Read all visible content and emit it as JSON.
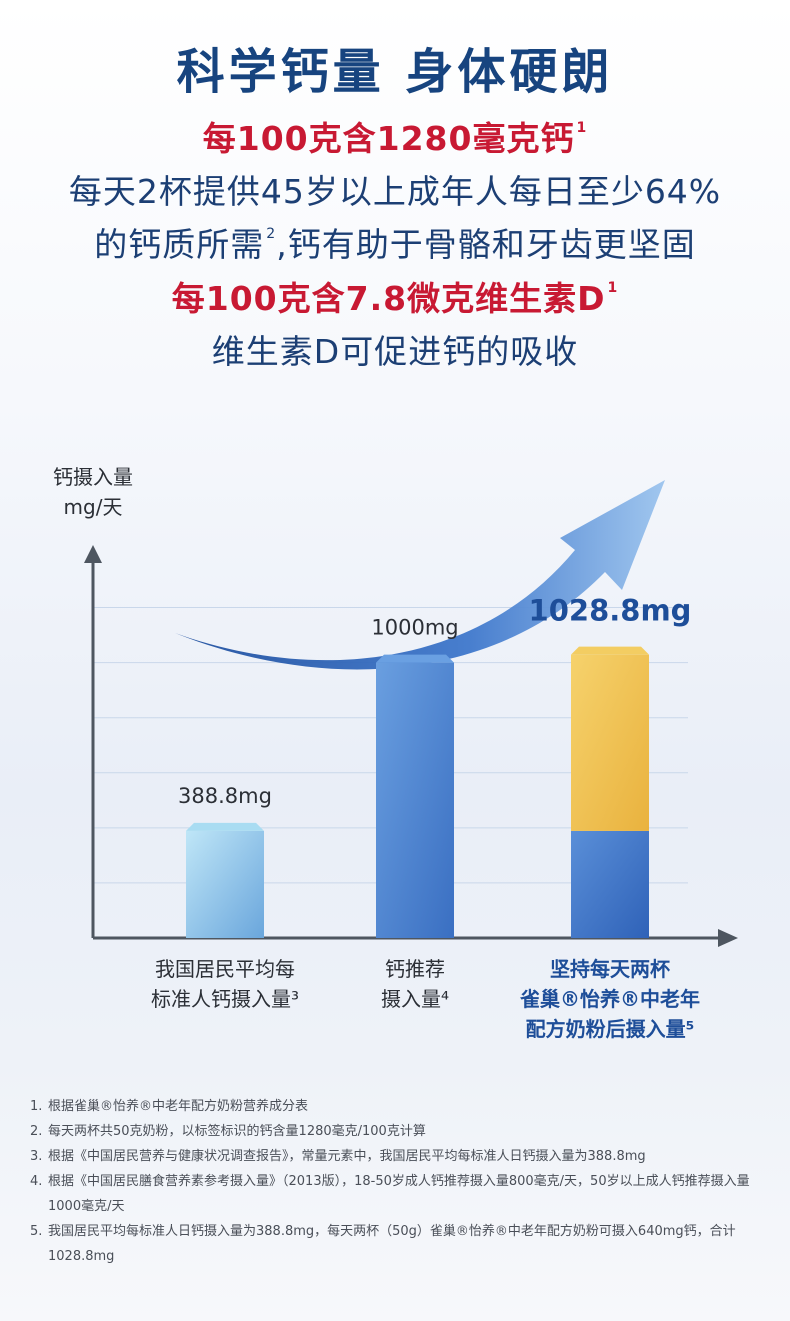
{
  "header": {
    "title": "科学钙量 身体硬朗",
    "lines": [
      {
        "text": "每100克含1280毫克钙",
        "sup": "1",
        "style": "red"
      },
      {
        "text": "每天2杯提供45岁以上成年人每日至少64%",
        "sup": "",
        "style": "blue"
      },
      {
        "text": "的钙质所需",
        "sup": "2",
        "tail": ",钙有助于骨骼和牙齿更坚固",
        "style": "blue"
      },
      {
        "text": "每100克含7.8微克维生素D",
        "sup": "1",
        "style": "red"
      },
      {
        "text": "维生素D可促进钙的吸收",
        "sup": "",
        "style": "blue"
      }
    ]
  },
  "chart_data": {
    "type": "bar",
    "ylabel": "钙摄入量 mg/天",
    "ylabel_lines": [
      "钙摄入量",
      "mg/天"
    ],
    "categories": [
      "我国居民平均每标准人钙摄入量³",
      "钙推荐摄入量⁴",
      "坚持每天两杯雀巢®怡养®中老年配方奶粉后摄入量⁵"
    ],
    "category_lines": [
      [
        "我国居民平均每",
        "标准人钙摄入量³"
      ],
      [
        "钙推荐",
        "摄入量⁴"
      ],
      [
        "坚持每天两杯",
        "雀巢®怡养®中老年",
        "配方奶粉后摄入量⁵"
      ]
    ],
    "values": [
      388.8,
      1000,
      1028.8
    ],
    "stacked_third": [
      {
        "part": "base",
        "value": 388.8
      },
      {
        "part": "milk",
        "value": 640
      }
    ],
    "value_labels": [
      "388.8mg",
      "1000mg",
      "1028.8mg"
    ],
    "ylim": [
      0,
      1300
    ],
    "grid": true,
    "colors": {
      "bar1": "#9fd3ee",
      "bar2": "#4f8ad6",
      "bar3_base": "#3f74c9",
      "bar3_top": "#f1c04f",
      "highlight": "#1e4e99",
      "arrow": "#3a6fc2"
    }
  },
  "footnotes": [
    {
      "num": "1.",
      "text": "根据雀巢®怡养®中老年配方奶粉营养成分表"
    },
    {
      "num": "2.",
      "text": "每天两杯共50克奶粉，以标签标识的钙含量1280毫克/100克计算"
    },
    {
      "num": "3.",
      "text": "根据《中国居民营养与健康状况调查报告》，常量元素中，我国居民平均每标准人日钙摄入量为388.8mg"
    },
    {
      "num": "4.",
      "text": "根据《中国居民膳食营养素参考摄入量》（2013版），18-50岁成人钙推荐摄入量800毫克/天，50岁以上成人钙推荐摄入量1000毫克/天"
    },
    {
      "num": "5.",
      "text": "我国居民平均每标准人日钙摄入量为388.8mg，每天两杯（50g）雀巢®怡养®中老年配方奶粉可摄入640mg钙，合计1028.8mg"
    }
  ]
}
